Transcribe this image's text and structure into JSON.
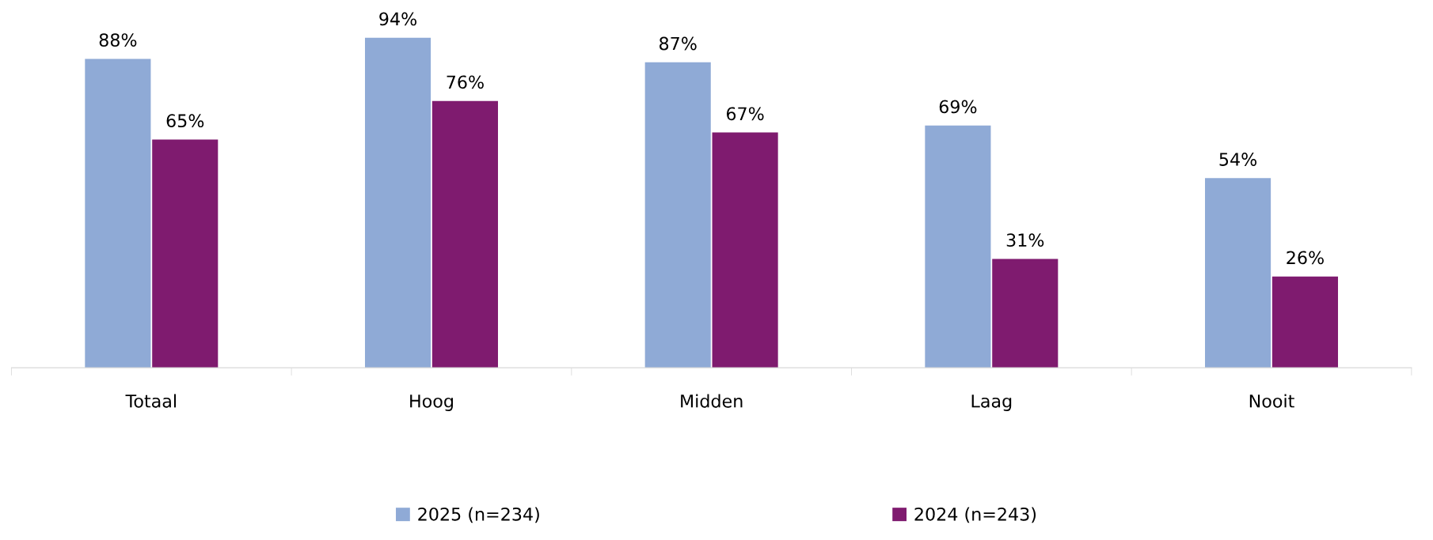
{
  "chart_data": {
    "type": "bar",
    "categories": [
      "Totaal",
      "Hoog",
      "Midden",
      "Laag",
      "Nooit"
    ],
    "series": [
      {
        "name": "2025 (n=234)",
        "color": "#8faad6",
        "values": [
          88,
          94,
          87,
          69,
          54
        ],
        "value_labels": [
          "88%",
          "94%",
          "87%",
          "69%",
          "54%"
        ]
      },
      {
        "name": "2024 (n=243)",
        "color": "#7f1b6f",
        "values": [
          65,
          76,
          67,
          31,
          26
        ],
        "value_labels": [
          "65%",
          "76%",
          "67%",
          "31%",
          "26%"
        ]
      }
    ],
    "legend": "bottom"
  }
}
